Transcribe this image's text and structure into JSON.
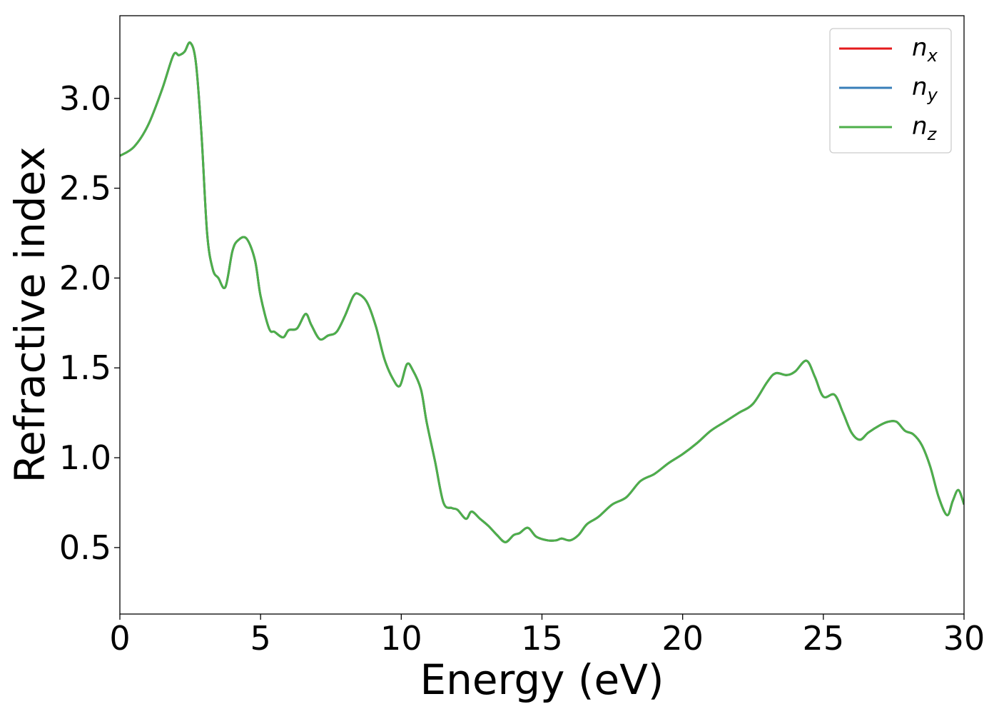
{
  "chart_data": {
    "type": "line",
    "xlabel": "Energy (eV)",
    "ylabel": "Refractive index",
    "xlim": [
      0,
      30
    ],
    "ylim": [
      0.13,
      3.46
    ],
    "xticks": [
      0,
      5,
      10,
      15,
      20,
      25,
      30
    ],
    "xtick_labels": [
      "0",
      "5",
      "10",
      "15",
      "20",
      "25",
      "30"
    ],
    "yticks": [
      0.5,
      1.0,
      1.5,
      2.0,
      2.5,
      3.0
    ],
    "ytick_labels": [
      "0.5",
      "1.0",
      "1.5",
      "2.0",
      "2.5",
      "3.0"
    ],
    "grid": false,
    "legend_position": "top-right",
    "x": [
      0,
      0.5,
      1.0,
      1.5,
      1.9,
      2.1,
      2.3,
      2.5,
      2.7,
      2.9,
      3.1,
      3.3,
      3.5,
      3.75,
      4.0,
      4.2,
      4.5,
      4.8,
      5.0,
      5.3,
      5.5,
      5.8,
      6.0,
      6.3,
      6.6,
      6.8,
      7.1,
      7.4,
      7.7,
      8.0,
      8.3,
      8.5,
      8.8,
      9.1,
      9.4,
      9.7,
      9.95,
      10.2,
      10.4,
      10.7,
      10.9,
      11.2,
      11.5,
      11.8,
      12.0,
      12.3,
      12.5,
      12.8,
      13.1,
      13.4,
      13.7,
      14.0,
      14.2,
      14.5,
      14.8,
      15.2,
      15.5,
      15.7,
      16.0,
      16.3,
      16.6,
      17.0,
      17.5,
      18.0,
      18.5,
      19.0,
      19.5,
      20.0,
      20.5,
      21.0,
      21.5,
      22.0,
      22.5,
      23.0,
      23.3,
      23.7,
      24.0,
      24.4,
      24.7,
      25.0,
      25.4,
      25.7,
      26.0,
      26.3,
      26.6,
      27.0,
      27.3,
      27.6,
      27.9,
      28.2,
      28.5,
      28.8,
      29.1,
      29.4,
      29.6,
      29.8,
      30.0
    ],
    "series": [
      {
        "name": "n_x",
        "color": "#e41a1c",
        "values": [
          2.68,
          2.73,
          2.85,
          3.05,
          3.24,
          3.24,
          3.26,
          3.31,
          3.2,
          2.8,
          2.25,
          2.05,
          2.0,
          1.95,
          2.15,
          2.21,
          2.22,
          2.1,
          1.9,
          1.72,
          1.7,
          1.67,
          1.71,
          1.72,
          1.8,
          1.74,
          1.66,
          1.68,
          1.7,
          1.79,
          1.9,
          1.91,
          1.86,
          1.73,
          1.55,
          1.44,
          1.4,
          1.52,
          1.49,
          1.38,
          1.2,
          0.98,
          0.75,
          0.72,
          0.71,
          0.66,
          0.7,
          0.66,
          0.62,
          0.57,
          0.53,
          0.57,
          0.58,
          0.61,
          0.56,
          0.54,
          0.54,
          0.55,
          0.54,
          0.57,
          0.63,
          0.67,
          0.74,
          0.78,
          0.87,
          0.91,
          0.97,
          1.02,
          1.08,
          1.15,
          1.2,
          1.25,
          1.3,
          1.42,
          1.47,
          1.46,
          1.48,
          1.54,
          1.45,
          1.34,
          1.35,
          1.25,
          1.14,
          1.1,
          1.14,
          1.18,
          1.2,
          1.2,
          1.15,
          1.13,
          1.07,
          0.95,
          0.78,
          0.68,
          0.76,
          0.82,
          0.74
        ]
      },
      {
        "name": "n_y",
        "color": "#377eb8",
        "values": [
          2.68,
          2.73,
          2.85,
          3.05,
          3.24,
          3.24,
          3.26,
          3.31,
          3.2,
          2.8,
          2.25,
          2.05,
          2.0,
          1.95,
          2.15,
          2.21,
          2.22,
          2.1,
          1.9,
          1.72,
          1.7,
          1.67,
          1.71,
          1.72,
          1.8,
          1.74,
          1.66,
          1.68,
          1.7,
          1.79,
          1.9,
          1.91,
          1.86,
          1.73,
          1.55,
          1.44,
          1.4,
          1.52,
          1.49,
          1.38,
          1.2,
          0.98,
          0.75,
          0.72,
          0.71,
          0.66,
          0.7,
          0.66,
          0.62,
          0.57,
          0.53,
          0.57,
          0.58,
          0.61,
          0.56,
          0.54,
          0.54,
          0.55,
          0.54,
          0.57,
          0.63,
          0.67,
          0.74,
          0.78,
          0.87,
          0.91,
          0.97,
          1.02,
          1.08,
          1.15,
          1.2,
          1.25,
          1.3,
          1.42,
          1.47,
          1.46,
          1.48,
          1.54,
          1.45,
          1.34,
          1.35,
          1.25,
          1.14,
          1.1,
          1.14,
          1.18,
          1.2,
          1.2,
          1.15,
          1.13,
          1.07,
          0.95,
          0.78,
          0.68,
          0.76,
          0.82,
          0.74
        ]
      },
      {
        "name": "n_z",
        "color": "#4daf4a",
        "values": [
          2.68,
          2.73,
          2.85,
          3.05,
          3.24,
          3.24,
          3.26,
          3.31,
          3.2,
          2.8,
          2.25,
          2.05,
          2.0,
          1.95,
          2.15,
          2.21,
          2.22,
          2.1,
          1.9,
          1.72,
          1.7,
          1.67,
          1.71,
          1.72,
          1.8,
          1.74,
          1.66,
          1.68,
          1.7,
          1.79,
          1.9,
          1.91,
          1.86,
          1.73,
          1.55,
          1.44,
          1.4,
          1.52,
          1.49,
          1.38,
          1.2,
          0.98,
          0.75,
          0.72,
          0.71,
          0.66,
          0.7,
          0.66,
          0.62,
          0.57,
          0.53,
          0.57,
          0.58,
          0.61,
          0.56,
          0.54,
          0.54,
          0.55,
          0.54,
          0.57,
          0.63,
          0.67,
          0.74,
          0.78,
          0.87,
          0.91,
          0.97,
          1.02,
          1.08,
          1.15,
          1.2,
          1.25,
          1.3,
          1.42,
          1.47,
          1.46,
          1.48,
          1.54,
          1.45,
          1.34,
          1.35,
          1.25,
          1.14,
          1.1,
          1.14,
          1.18,
          1.2,
          1.2,
          1.15,
          1.13,
          1.07,
          0.95,
          0.78,
          0.68,
          0.76,
          0.82,
          0.74
        ]
      }
    ],
    "legend": [
      {
        "base": "n",
        "sub": "x"
      },
      {
        "base": "n",
        "sub": "y"
      },
      {
        "base": "n",
        "sub": "z"
      }
    ]
  }
}
